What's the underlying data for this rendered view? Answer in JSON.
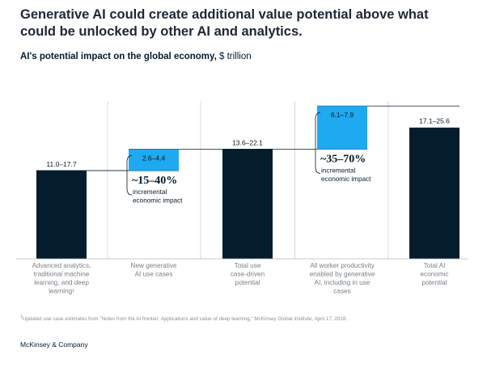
{
  "headline": "Generative AI could create additional value potential above what could be unlocked by other AI and analytics.",
  "subtitle": {
    "bold": "AI's potential impact on the global economy,",
    "unit": "$ trillion"
  },
  "chart_data": {
    "type": "waterfall",
    "y_unit": "$ trillion",
    "categories": [
      [
        "Advanced analytics,",
        "traditional machine",
        "learning, and deep",
        "learning¹"
      ],
      [
        "New generative",
        "AI use cases"
      ],
      [
        "Total use",
        "case-driven",
        "potential"
      ],
      [
        "All worker productivity",
        "enabled by generative",
        "AI, including in use",
        "cases"
      ],
      [
        "Total AI",
        "economic",
        "potential"
      ]
    ],
    "bars": [
      {
        "kind": "total",
        "low": 11.0,
        "high": 17.7,
        "label": "11.0–17.7",
        "color": "#051c2c"
      },
      {
        "kind": "increment",
        "low": 2.6,
        "high": 4.4,
        "label": "2.6–4.4",
        "color": "#1ea9f0"
      },
      {
        "kind": "total",
        "low": 13.6,
        "high": 22.1,
        "label": "13.6–22.1",
        "color": "#051c2c"
      },
      {
        "kind": "increment",
        "low": 6.1,
        "high": 7.9,
        "label": "6.1–7.9",
        "color": "#1ea9f0"
      },
      {
        "kind": "total",
        "low": 17.1,
        "high": 25.6,
        "label": "17.1–25.6",
        "color": "#051c2c"
      }
    ],
    "annotations": [
      {
        "after_bar": 1,
        "big": "~15–40%",
        "small": [
          "incremental",
          "economic impact"
        ]
      },
      {
        "after_bar": 3,
        "big": "~35–70%",
        "small": [
          "incremental",
          "economic impact"
        ]
      }
    ]
  },
  "footnote": "Updated use case estimates from \"Notes from the AI frontier: Applications and value of deep learning,\" McKinsey Global Institute, April 17, 2018.",
  "footnote_mark": "1",
  "brand": "McKinsey & Company"
}
